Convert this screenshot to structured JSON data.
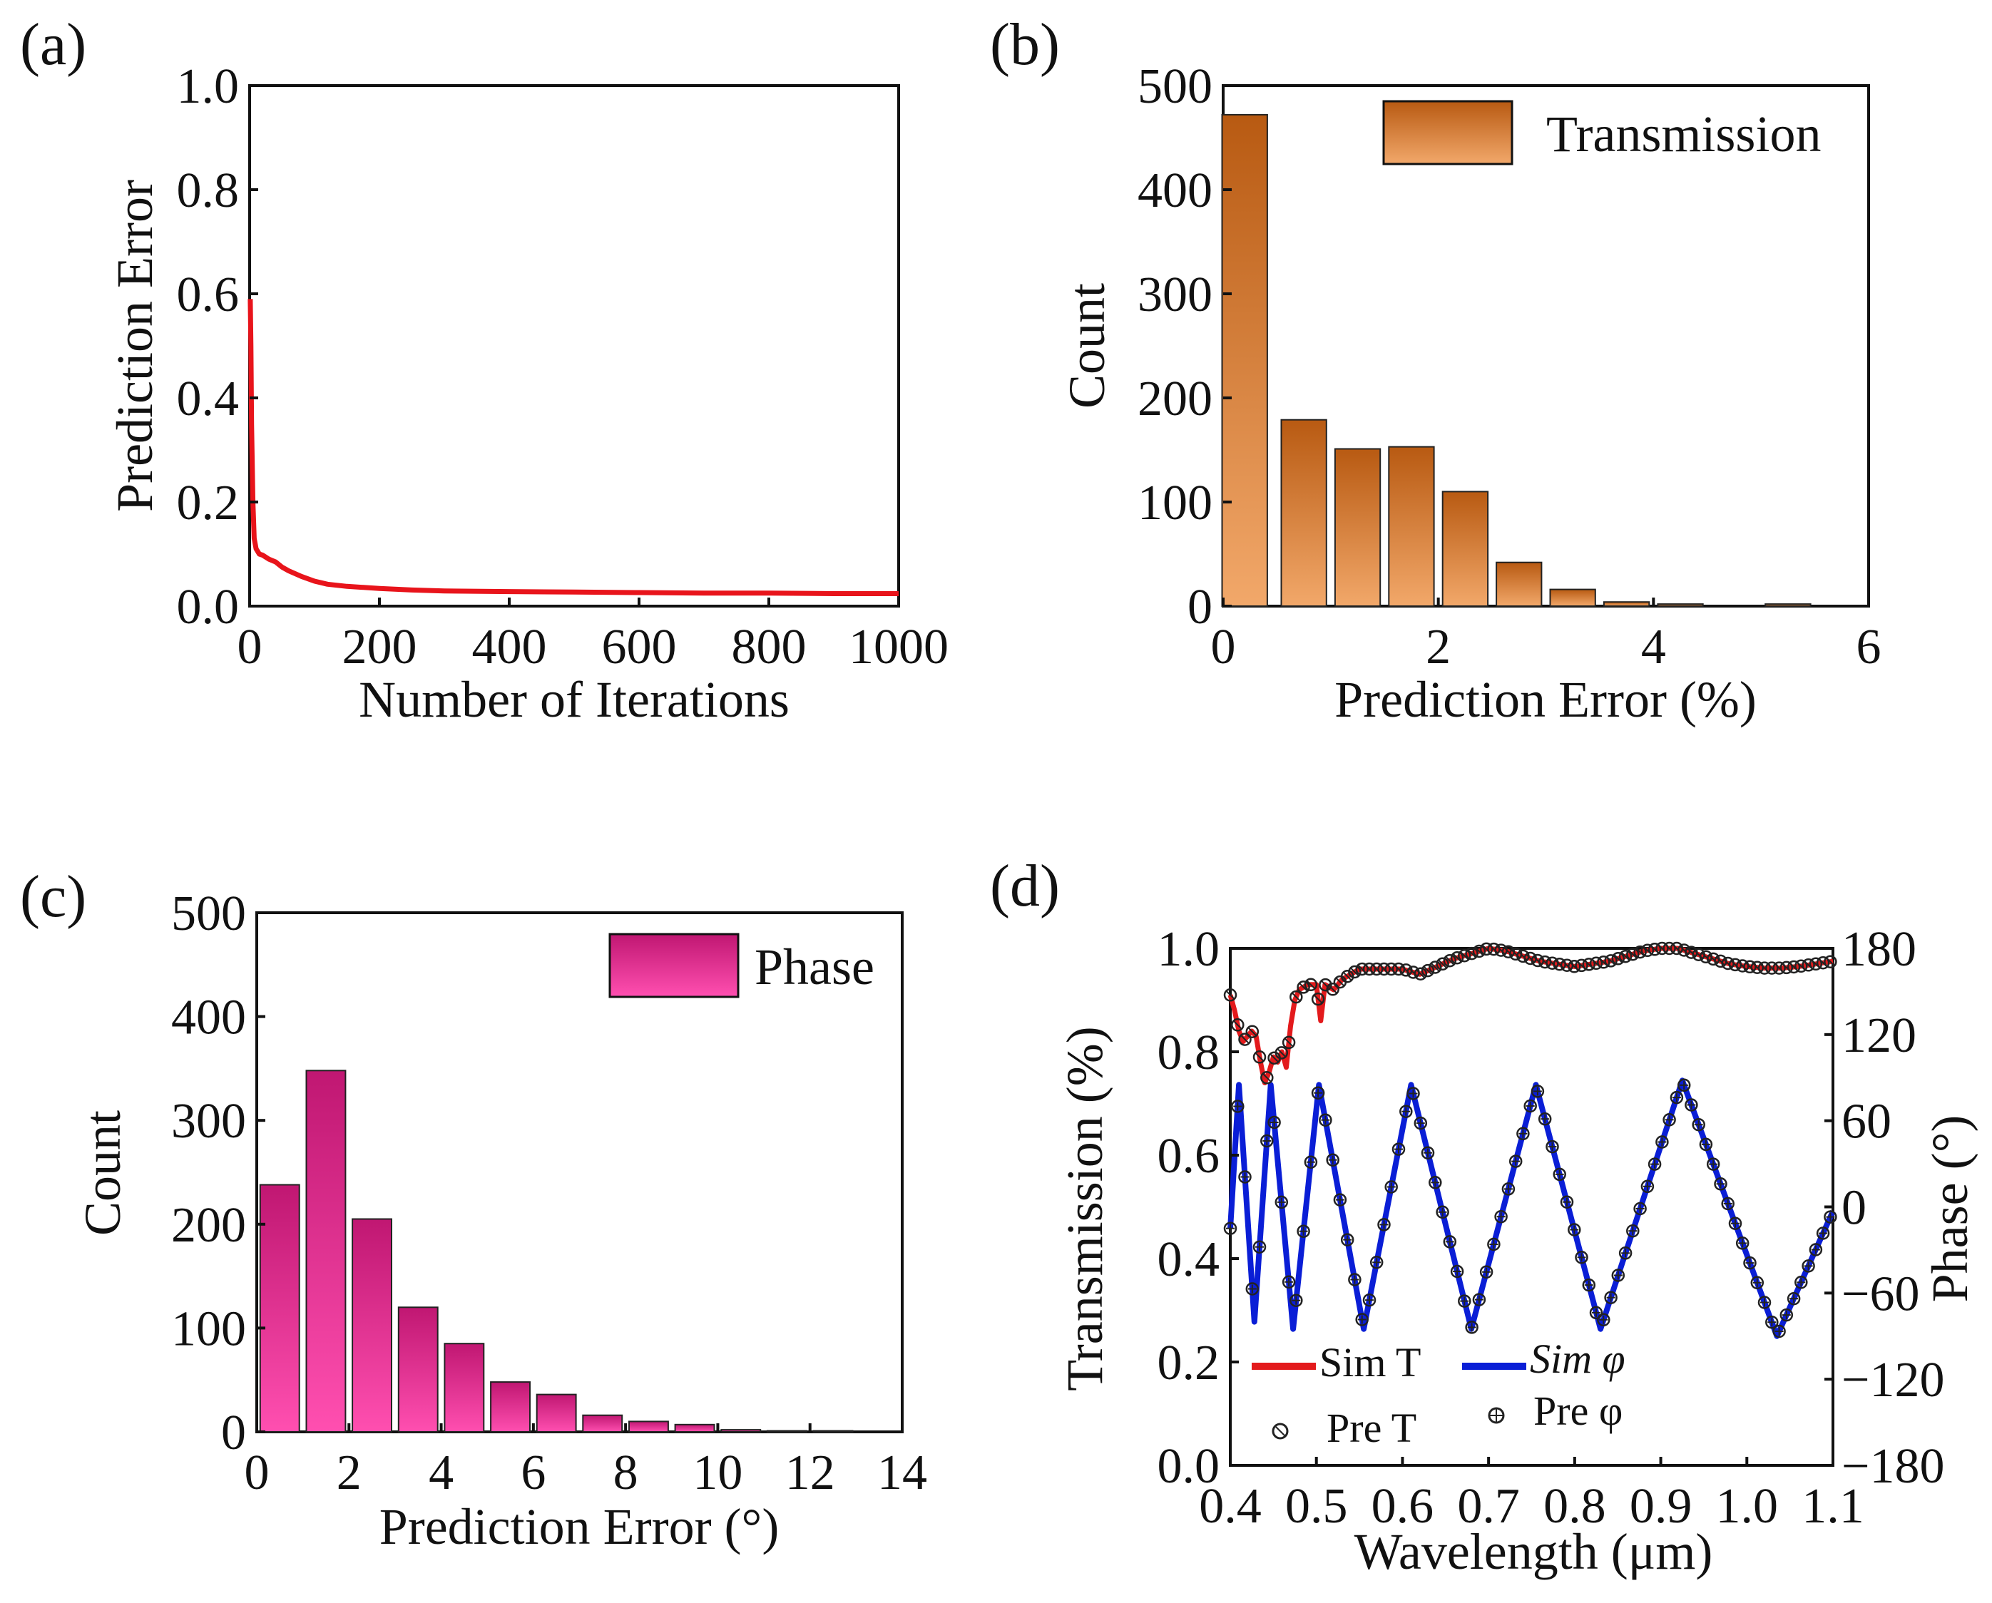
{
  "chart_data": [
    {
      "panel": "(a)",
      "type": "line",
      "xlabel": "Number of Iterations",
      "ylabel": "Prediction Error",
      "xlim": [
        0,
        1000
      ],
      "ylim": [
        0.0,
        1.0
      ],
      "xticks": [
        "0",
        "200",
        "400",
        "600",
        "800",
        "1000"
      ],
      "yticks": [
        "0.0",
        "0.2",
        "0.4",
        "0.6",
        "0.8",
        "1.0"
      ],
      "color": "#e8141b",
      "series": [
        {
          "name": "Prediction Error",
          "x": [
            1,
            2,
            3,
            5,
            7,
            10,
            15,
            20,
            30,
            40,
            50,
            60,
            80,
            100,
            120,
            150,
            200,
            250,
            300,
            400,
            500,
            600,
            700,
            800,
            900,
            1000
          ],
          "y": [
            0.59,
            0.5,
            0.35,
            0.2,
            0.13,
            0.11,
            0.1,
            0.098,
            0.09,
            0.085,
            0.075,
            0.068,
            0.057,
            0.048,
            0.042,
            0.038,
            0.034,
            0.031,
            0.029,
            0.028,
            0.027,
            0.026,
            0.025,
            0.025,
            0.024,
            0.024
          ]
        }
      ]
    },
    {
      "panel": "(b)",
      "type": "bar",
      "xlabel": "Prediction Error (%)",
      "ylabel": "Count",
      "xlim": [
        0,
        6
      ],
      "ylim": [
        0,
        500
      ],
      "xticks": [
        "0",
        "2",
        "4",
        "6"
      ],
      "yticks": [
        "0",
        "100",
        "200",
        "300",
        "400",
        "500"
      ],
      "legend": "Transmission",
      "bar_width": 0.42,
      "color_top": "#b85a12",
      "color_bottom": "#f2a86a",
      "bins": [
        0.2,
        0.75,
        1.25,
        1.75,
        2.25,
        2.75,
        3.25,
        3.75,
        4.25,
        4.75,
        5.25
      ],
      "values": [
        472,
        179,
        151,
        153,
        110,
        42,
        16,
        4,
        2,
        0,
        2
      ]
    },
    {
      "panel": "(c)",
      "type": "bar",
      "xlabel": "Prediction Error (°)",
      "ylabel": "Count",
      "xlim": [
        0,
        14
      ],
      "ylim": [
        0,
        500
      ],
      "xticks": [
        "0",
        "2",
        "4",
        "6",
        "8",
        "10",
        "12",
        "14"
      ],
      "yticks": [
        "0",
        "100",
        "200",
        "300",
        "400",
        "500"
      ],
      "legend": "Phase",
      "bar_width": 0.85,
      "color_top": "#c01772",
      "color_bottom": "#ff4fb0",
      "bins": [
        0.5,
        1.5,
        2.5,
        3.5,
        4.5,
        5.5,
        6.5,
        7.5,
        8.5,
        9.5,
        10.5,
        11.5,
        12.5
      ],
      "values": [
        238,
        348,
        205,
        120,
        85,
        48,
        36,
        16,
        10,
        7,
        2,
        1,
        1
      ]
    },
    {
      "panel": "(d)",
      "type": "line",
      "xlabel": "Wavelength (μm)",
      "ylabel": "Transmission (%)",
      "ylabel_right": "Phase (°)",
      "xlim": [
        0.4,
        1.1
      ],
      "ylim": [
        0.0,
        1.0
      ],
      "ylim_right": [
        -180,
        180
      ],
      "xticks": [
        "0.4",
        "0.5",
        "0.6",
        "0.7",
        "0.8",
        "0.9",
        "1.0",
        "1.1"
      ],
      "yticks": [
        "0.0",
        "0.2",
        "0.4",
        "0.6",
        "0.8",
        "1.0"
      ],
      "yticks_right": [
        "−180",
        "−120",
        "−60",
        "0",
        "60",
        "120",
        "180"
      ],
      "legend": {
        "sim_t": "Sim T",
        "sim_phi": "Sim φ",
        "pre_t": "Pre T",
        "pre_phi": "Pre φ"
      },
      "colors": {
        "sim_t": "#e31a1c",
        "sim_phi": "#0a1ed6",
        "markers": "#222222"
      },
      "series_T": {
        "x": [
          0.4,
          0.405,
          0.41,
          0.415,
          0.42,
          0.425,
          0.43,
          0.435,
          0.44,
          0.445,
          0.45,
          0.455,
          0.46,
          0.465,
          0.47,
          0.475,
          0.48,
          0.49,
          0.5,
          0.505,
          0.51,
          0.52,
          0.53,
          0.54,
          0.55,
          0.56,
          0.58,
          0.6,
          0.62,
          0.64,
          0.66,
          0.68,
          0.7,
          0.72,
          0.74,
          0.76,
          0.78,
          0.8,
          0.82,
          0.84,
          0.86,
          0.88,
          0.9,
          0.92,
          0.94,
          0.96,
          0.98,
          1.0,
          1.02,
          1.04,
          1.06,
          1.08,
          1.1
        ],
        "y": [
          0.91,
          0.88,
          0.84,
          0.82,
          0.83,
          0.84,
          0.83,
          0.78,
          0.74,
          0.76,
          0.79,
          0.78,
          0.8,
          0.77,
          0.85,
          0.9,
          0.92,
          0.93,
          0.93,
          0.86,
          0.93,
          0.92,
          0.94,
          0.95,
          0.96,
          0.96,
          0.96,
          0.96,
          0.95,
          0.965,
          0.98,
          0.99,
          1.0,
          0.995,
          0.985,
          0.975,
          0.97,
          0.965,
          0.97,
          0.975,
          0.985,
          0.995,
          1.0,
          1.0,
          0.99,
          0.98,
          0.97,
          0.965,
          0.962,
          0.962,
          0.965,
          0.97,
          0.975
        ]
      },
      "series_phi": {
        "x": [
          0.4,
          0.41,
          0.428,
          0.447,
          0.473,
          0.503,
          0.555,
          0.61,
          0.68,
          0.755,
          0.83,
          0.925,
          1.035,
          1.1
        ],
        "y": [
          -15,
          85,
          -80,
          85,
          -85,
          85,
          -85,
          85,
          -85,
          85,
          -85,
          88,
          -90,
          -3
        ]
      }
    }
  ]
}
